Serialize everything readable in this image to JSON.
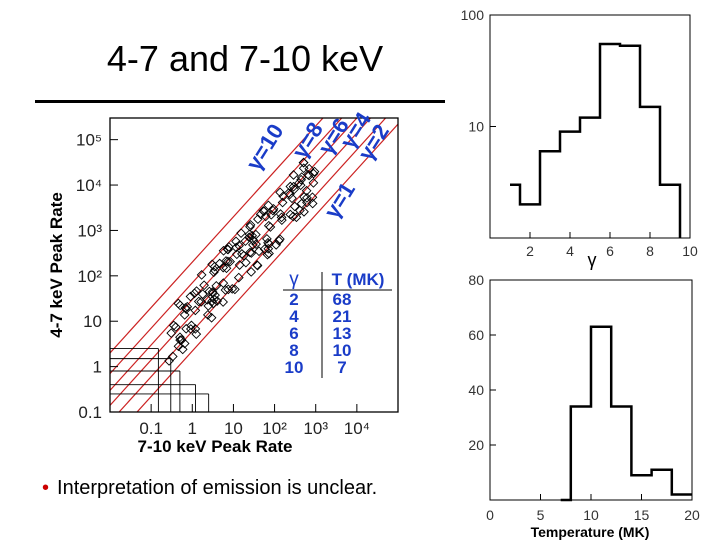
{
  "slide": {
    "title": "4-7 and 7-10 keV",
    "bullet": "Interpretation of emission is unclear."
  },
  "chart_data": [
    {
      "type": "scatter",
      "xlabel": "7-10 keV Peak Rate",
      "ylabel": "4-7 keV Peak Rate",
      "xscale": "log",
      "yscale": "log",
      "xlim": [
        0.01,
        100000
      ],
      "ylim": [
        0.1,
        300000
      ],
      "x_tick_labels": [
        "0.1",
        "1",
        "10",
        "10²",
        "10³",
        "10⁴"
      ],
      "y_tick_labels": [
        "0.1",
        "1",
        "10",
        "10²",
        "10³",
        "10⁴",
        "10⁵"
      ],
      "gamma_lines": [
        {
          "label": "γ=10",
          "gamma": 10
        },
        {
          "label": "γ=8",
          "gamma": 8
        },
        {
          "label": "γ=6",
          "gamma": 6
        },
        {
          "label": "γ=4",
          "gamma": 4
        },
        {
          "label": "γ=2",
          "gamma": 2
        },
        {
          "label": "γ=1",
          "gamma": 1
        }
      ],
      "table": {
        "headers": [
          "γ",
          "T (MK)"
        ],
        "rows": [
          [
            "2",
            "68"
          ],
          [
            "4",
            "21"
          ],
          [
            "6",
            "13"
          ],
          [
            "8",
            "10"
          ],
          [
            "10",
            "7"
          ]
        ]
      },
      "colors": {
        "lines": "#cc2222",
        "annotations": "#1a3cc8",
        "points": "#000000"
      }
    },
    {
      "type": "histogram",
      "xlabel": "γ",
      "yscale": "log",
      "xlim": [
        0,
        10
      ],
      "ylim": [
        1,
        100
      ],
      "x_ticks": [
        "2",
        "4",
        "6",
        "8",
        "10"
      ],
      "y_ticks": [
        "10",
        "100"
      ],
      "bins": [
        {
          "x0": 1,
          "x1": 1.5,
          "count": 3
        },
        {
          "x0": 1.5,
          "x1": 2.5,
          "count": 2
        },
        {
          "x0": 2.5,
          "x1": 3.5,
          "count": 6
        },
        {
          "x0": 3.5,
          "x1": 4.5,
          "count": 9
        },
        {
          "x0": 4.5,
          "x1": 5.5,
          "count": 12
        },
        {
          "x0": 5.5,
          "x1": 6.5,
          "count": 55
        },
        {
          "x0": 6.5,
          "x1": 7.5,
          "count": 53
        },
        {
          "x0": 7.5,
          "x1": 8.5,
          "count": 15
        },
        {
          "x0": 8.5,
          "x1": 9.5,
          "count": 3
        }
      ]
    },
    {
      "type": "histogram",
      "xlabel": "Temperature (MK)",
      "xlim": [
        0,
        20
      ],
      "ylim": [
        0,
        80
      ],
      "x_ticks": [
        "0",
        "5",
        "10",
        "15",
        "20"
      ],
      "y_ticks": [
        "20",
        "40",
        "60",
        "80"
      ],
      "bins": [
        {
          "x0": 7,
          "x1": 8,
          "count": 0
        },
        {
          "x0": 8,
          "x1": 10,
          "count": 34
        },
        {
          "x0": 10,
          "x1": 12,
          "count": 63
        },
        {
          "x0": 12,
          "x1": 14,
          "count": 34
        },
        {
          "x0": 14,
          "x1": 16,
          "count": 9
        },
        {
          "x0": 16,
          "x1": 18,
          "count": 11
        },
        {
          "x0": 18,
          "x1": 20,
          "count": 2
        }
      ]
    }
  ]
}
